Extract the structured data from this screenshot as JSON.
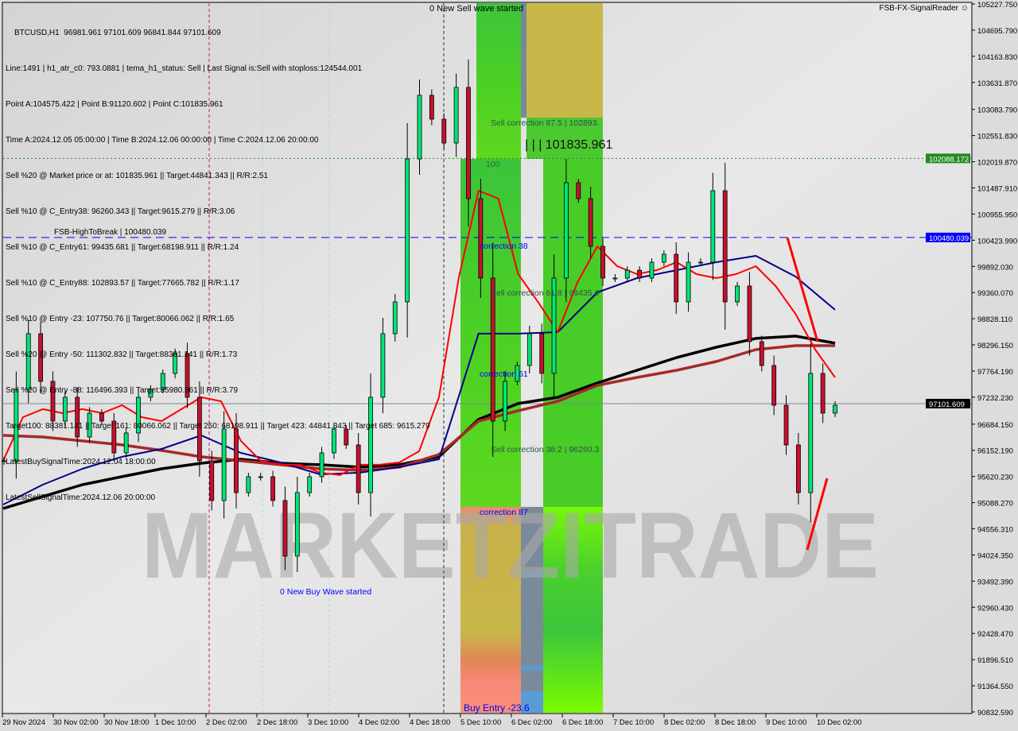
{
  "header": {
    "symbol_line": "BTCUSD,H1  96981.961 97101.609 96841.844 97101.609",
    "lines": [
      "Line:1491 | h1_atr_c0: 793.0881 | tema_h1_status: Sell | Last Signal is:Sell with stoploss:124544.001",
      "Point A:104575.422 | Point B:91120.602 | Point C:101835.961",
      "Time A:2024.12.05 05:00:00 | Time B:2024.12.06 00:00:00 | Time C:2024.12.06 20:00:00",
      "Sell %20 @ Market price or at: 101835.961 || Target:44841.343 || R/R:2.51",
      "Sell %10 @ C_Entry38: 96260.343 || Target:9615.279 || R/R:3.06",
      "Sell %10 @ C_Entry61: 99435.681 || Target:68198.911 || R/R:1.24",
      "Sell %10 @ C_Entry88: 102893.57 || Target:77665.782 || R/R:1.17",
      "Sell %10 @ Entry -23: 107750.76 || Target:80066.062 || R/R:1.65",
      "Sell %20 @ Entry -50: 111302.832 || Target:88381.141 || R/R:1.73",
      "Sell %20 @ Entry -88: 116496.393 || Target:85980.861 || R/R:3.79",
      "Target100: 88381.141 || Target 161: 80066.062 || Target 250: 68198.911 || Target 423: 44841.343 || Target 685: 9615.279",
      "LatestBuySignalTime:2024.12.04 18:00:00",
      "LatestSellSignalTime:2024.12.06 20:00:00"
    ],
    "brand": "FSB-FX-SignalReader",
    "brand_icon": "smiley-icon"
  },
  "annotations": {
    "sell_wave": "0 New Sell wave started",
    "buy_wave": "0 New Buy Wave started",
    "sell_corr_875": "Sell correction 87.5 | 102893.",
    "point_c": "| | | 101835.961",
    "level_100": "100",
    "corr_38": "correction 38",
    "sell_corr_618": "Sell correction 61.8 | 99435.6",
    "corr_61": "correction 61",
    "sell_corr_382": "Sell correction 38.2 | 96260.3",
    "corr_87": "correction 87",
    "buy_entry": "Buy Entry -23.6",
    "high_to_break": "FSB-HighToBreak | 100480.039",
    "watermark": "MARKETZITRADE"
  },
  "colors": {
    "bull": "#00e676",
    "bear": "#c8102e",
    "ma_fast": "#ff0000",
    "ma_mid": "#00008b",
    "ma_slow_brown": "#a52a2a",
    "ma_slow_black": "#000000",
    "level_green": "#228b22",
    "level_blue": "#0000ff",
    "current_price": "#000000"
  },
  "chart_data": {
    "type": "candlestick",
    "title": "BTCUSD,H1",
    "ylim": [
      90832.59,
      105227.75
    ],
    "y_ticks": [
      105227.75,
      104695.79,
      104163.83,
      103631.87,
      103083.79,
      102551.83,
      102019.87,
      101487.91,
      100955.95,
      100423.99,
      99892.03,
      99360.07,
      98828.11,
      98296.15,
      97764.19,
      97232.23,
      96684.15,
      96152.19,
      95620.23,
      95088.27,
      94556.31,
      94024.35,
      93492.39,
      92960.43,
      92428.47,
      91896.51,
      91364.55,
      90832.59
    ],
    "x_ticks": [
      "29 Nov 2024",
      "30 Nov 02:00",
      "30 Nov 18:00",
      "1 Dec 10:00",
      "2 Dec 02:00",
      "2 Dec 18:00",
      "3 Dec 10:00",
      "4 Dec 02:00",
      "4 Dec 18:00",
      "5 Dec 10:00",
      "6 Dec 02:00",
      "6 Dec 18:00",
      "7 Dec 10:00",
      "8 Dec 02:00",
      "8 Dec 18:00",
      "9 Dec 10:00",
      "10 Dec 02:00"
    ],
    "closes": [
      95939,
      97393,
      98524,
      97554,
      96746,
      97231,
      96423,
      96908,
      96746,
      96100,
      96504,
      97231,
      97393,
      97716,
      98120,
      97231,
      95939,
      95131,
      96585,
      95292,
      95615,
      95615,
      95131,
      94000,
      95292,
      95615,
      96100,
      96585,
      96262,
      95292,
      97231,
      98524,
      99170,
      102077,
      103370,
      102885,
      102400,
      103531,
      101270,
      99654,
      96746,
      97554,
      97877,
      98524,
      97716,
      99654,
      101593,
      101270,
      100300,
      99654,
      99654,
      99815,
      99654,
      99977,
      100139,
      99170,
      99977,
      99977,
      101431,
      99170,
      99493,
      98362,
      97877,
      97069,
      96262,
      95292,
      97716,
      96908,
      97069
    ],
    "series": [
      {
        "key": "ma_fast",
        "values": [
          95939,
          96827,
          96989,
          96908,
          96989,
          96908,
          97070,
          96827,
          96746,
          96989,
          97231,
          97150,
          96343,
          95939,
          95858,
          95858,
          95697,
          95648,
          95858,
          95858,
          95906,
          96133,
          97231,
          99654,
          101431,
          101270,
          99735,
          99170,
          98556,
          99573,
          100300,
          99896,
          99735,
          99815,
          99977,
          99735,
          99654,
          99735,
          99896,
          99493,
          98927,
          98200,
          97635
        ]
      },
      {
        "key": "ma_mid",
        "values": [
          95050,
          95454,
          95777,
          96020,
          96181,
          96456,
          96100,
          95906,
          95664,
          95697,
          95810,
          95971,
          98524,
          98524,
          98556,
          99363,
          99654,
          99815,
          99977,
          100106,
          99686,
          99009
        ]
      },
      {
        "key": "ma_slow_brown",
        "values": [
          96456,
          96423,
          96343,
          96262,
          96150,
          96020,
          95939,
          95858,
          95777,
          95745,
          95810,
          96068,
          96746,
          96957,
          97150,
          97473,
          97635,
          97780,
          97958,
          98200,
          98281,
          98281
        ]
      },
      {
        "key": "ma_slow_black",
        "values": [
          94970,
          95212,
          95454,
          95616,
          95777,
          95890,
          95971,
          95890,
          95858,
          95810,
          95858,
          96020,
          96779,
          97102,
          97231,
          97522,
          97780,
          98039,
          98249,
          98427,
          98475,
          98330
        ]
      }
    ],
    "levels": [
      {
        "key": "level_green",
        "value": 102088.172,
        "label": "102088.172"
      },
      {
        "key": "level_blue",
        "value": 100480.039,
        "label": "100480.039"
      },
      {
        "key": "current_price",
        "value": 97101.609,
        "label": "97101.609"
      }
    ]
  }
}
